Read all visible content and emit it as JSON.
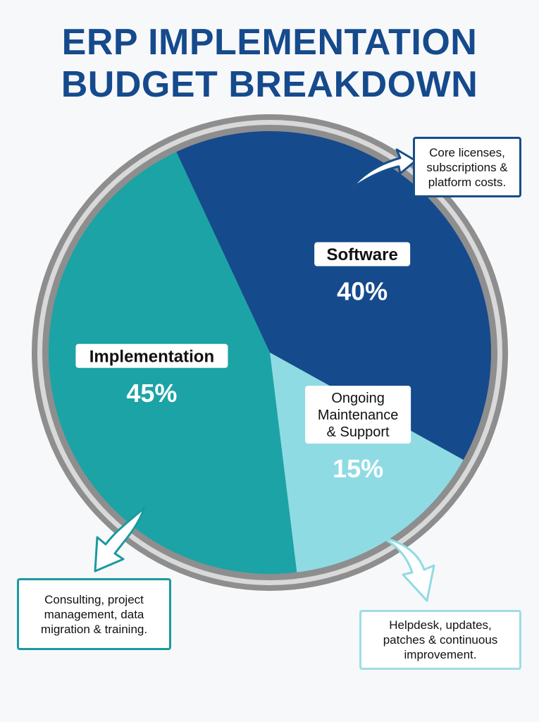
{
  "title_lines": [
    "ERP IMPLEMENTATION",
    "BUDGET BREAKDOWN"
  ],
  "chart_data": {
    "type": "pie",
    "title": "ERP IMPLEMENTATION BUDGET BREAKDOWN",
    "slices": [
      {
        "label": "Software",
        "value": 40,
        "value_label": "40%",
        "color": "#154a8c"
      },
      {
        "label": "Ongoing Maintenance & Support",
        "value": 15,
        "value_label": "15%",
        "color": "#8fdbe4"
      },
      {
        "label": "Implementation",
        "value": 45,
        "value_label": "45%",
        "color": "#1ca3a6"
      }
    ],
    "legend": "none",
    "annotations": [
      "Core licenses, subscriptions & platform costs.",
      "Consulting, project management, data migration & training.",
      "Helpdesk, updates, patches & continuous improvement."
    ]
  },
  "callouts": {
    "software": "Core licenses, subscriptions & platform costs.",
    "implementation": "Consulting, project management, data migration & training.",
    "maintenance": "Helpdesk, updates, patches & continuous improvement."
  },
  "colors": {
    "title": "#154a8c",
    "rim": "#8e8e8e",
    "software": "#154a8c",
    "implementation": "#1ca3a6",
    "maintenance": "#8fdbe4"
  }
}
